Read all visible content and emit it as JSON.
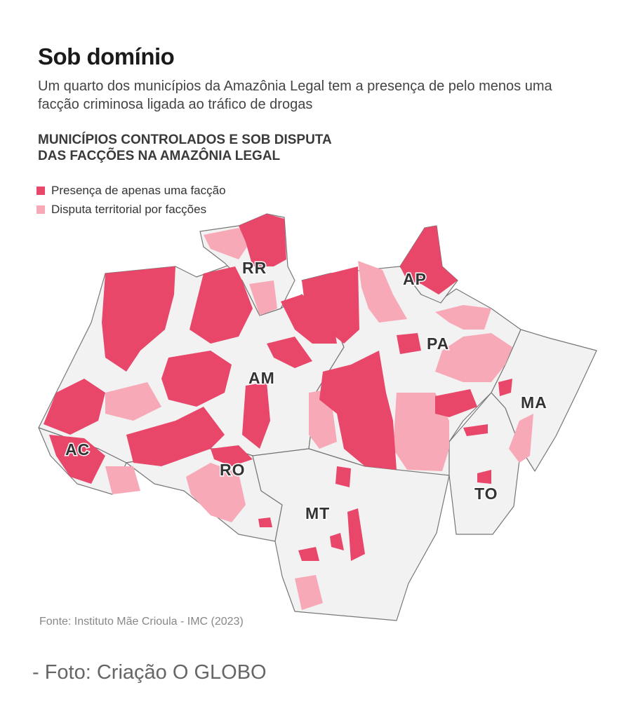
{
  "header": {
    "title": "Sob domínio",
    "subtitle": "Um quarto dos municípios da Amazônia Legal tem a presença de pelo menos uma facção criminosa ligada ao tráfico de drogas"
  },
  "map": {
    "title_line1": "MUNICÍPIOS CONTROLADOS E SOB DISPUTA",
    "title_line2": "DAS FACÇÕES NA AMAZÔNIA LEGAL",
    "legend": [
      {
        "label": "Presença de apenas uma facção",
        "color": "#e8476a"
      },
      {
        "label": "Disputa territorial por facções",
        "color": "#f7a9b8"
      }
    ],
    "base_color": "#f2f2f2",
    "border_color": "#777777",
    "states": [
      "RR",
      "AP",
      "AM",
      "PA",
      "AC",
      "RO",
      "MT",
      "MA",
      "TO"
    ]
  },
  "footer": {
    "source": "Fonte: Instituto Mãe Crioula - IMC (2023)",
    "credit": "- Foto: Criação O GLOBO"
  }
}
